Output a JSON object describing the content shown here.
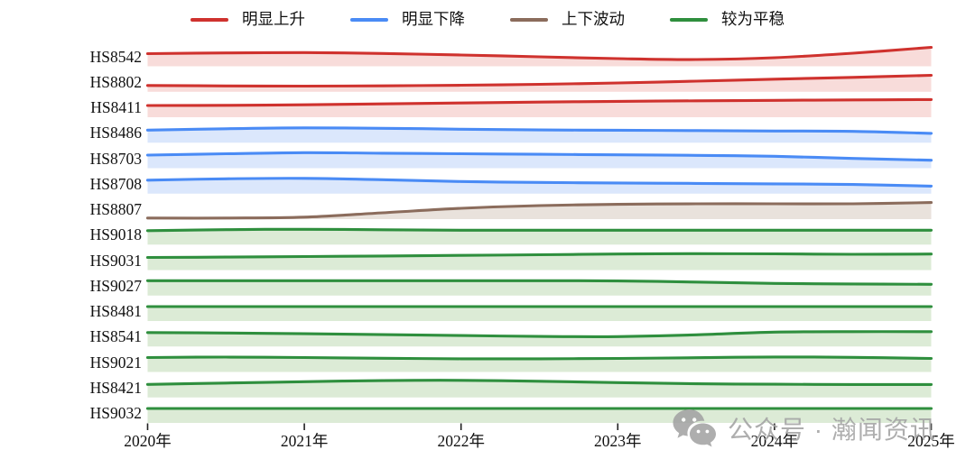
{
  "legend": {
    "items": [
      {
        "label": "明显上升",
        "color": "#cf322e"
      },
      {
        "label": "明显下降",
        "color": "#4a8bf5"
      },
      {
        "label": "上下波动",
        "color": "#8b6c5c"
      },
      {
        "label": "较为平稳",
        "color": "#2f8f3e"
      }
    ]
  },
  "watermark": {
    "icon": "wechat-icon",
    "text": "公众号 · 瀚闻资讯",
    "color": "#a3a3a3"
  },
  "chart_data": {
    "type": "area",
    "title": "",
    "xlabel": "",
    "ylabel": "",
    "x": [
      2020,
      2020.5,
      2021,
      2021.5,
      2022,
      2022.5,
      2023,
      2023.5,
      2024,
      2024.5,
      2025
    ],
    "x_ticks": [
      "2020年",
      "2021年",
      "2022年",
      "2023年",
      "2024年",
      "2025年"
    ],
    "xlim": [
      2020,
      2025
    ],
    "band_value_range": [
      0,
      22
    ],
    "grid": false,
    "legend_position": "top-center",
    "value_note": "relative level per HS-code band (ridgeline area chart), arbitrary units",
    "groups": [
      {
        "label": "明显上升",
        "line": "#cf322e",
        "fill": "#f8dcda"
      },
      {
        "label": "明显下降",
        "line": "#4a8bf5",
        "fill": "#dbe7fc"
      },
      {
        "label": "上下波动",
        "line": "#8b6c5c",
        "fill": "#e9e2dc"
      },
      {
        "label": "较为平稳",
        "line": "#2f8f3e",
        "fill": "#dcebd6"
      }
    ],
    "series": [
      {
        "name": "HS8542",
        "group": "明显上升",
        "values": [
          14,
          14.8,
          15.2,
          14.2,
          12.5,
          10.5,
          8.5,
          7.5,
          9.5,
          14.5,
          21
        ]
      },
      {
        "name": "HS8802",
        "group": "明显上升",
        "values": [
          7,
          6.5,
          6.2,
          6.6,
          7.2,
          8.2,
          9.8,
          11.8,
          14,
          16,
          18.2
        ]
      },
      {
        "name": "HS8411",
        "group": "明显上升",
        "values": [
          13,
          13.2,
          13.8,
          14.8,
          15.8,
          16.8,
          17.6,
          18.2,
          18.7,
          19.2,
          19.6
        ]
      },
      {
        "name": "HS8486",
        "group": "明显下降",
        "values": [
          14,
          15.5,
          16.5,
          16,
          15,
          14.2,
          13.8,
          13.4,
          13,
          12.6,
          10.3
        ]
      },
      {
        "name": "HS8703",
        "group": "明显下降",
        "values": [
          14.5,
          16,
          17.2,
          16.6,
          16,
          15.4,
          14.8,
          14.2,
          13.2,
          10.8,
          8.8
        ]
      },
      {
        "name": "HS8708",
        "group": "明显下降",
        "values": [
          15,
          16.5,
          17,
          15.4,
          13.4,
          12.4,
          11.8,
          11.3,
          10.8,
          10.2,
          8.3
        ]
      },
      {
        "name": "HS8807",
        "group": "上下波动",
        "values": [
          1.2,
          1.2,
          2.2,
          7,
          12,
          15,
          16.4,
          17,
          17,
          17,
          18.4
        ]
      },
      {
        "name": "HS9018",
        "group": "较为平稳",
        "values": [
          15.5,
          16.6,
          17,
          16.5,
          16,
          16,
          16,
          16,
          16,
          16,
          16
        ]
      },
      {
        "name": "HS9031",
        "group": "较为平稳",
        "values": [
          14,
          14.4,
          15,
          15.6,
          16.3,
          17,
          17.8,
          18.2,
          18,
          17.5,
          17.8
        ]
      },
      {
        "name": "HS9027",
        "group": "较为平稳",
        "values": [
          16.5,
          16.5,
          16.5,
          16.5,
          16.5,
          16.5,
          16.2,
          15,
          13.5,
          12.8,
          12.5
        ]
      },
      {
        "name": "HS8481",
        "group": "较为平稳",
        "values": [
          16,
          16,
          16,
          16,
          16,
          16,
          16,
          16,
          16,
          16,
          16
        ]
      },
      {
        "name": "HS8541",
        "group": "较为平稳",
        "values": [
          15.5,
          15,
          14.2,
          13.2,
          12.2,
          11.2,
          11,
          13,
          16,
          16.5,
          16.5
        ]
      },
      {
        "name": "HS9021",
        "group": "较为平稳",
        "values": [
          16,
          16.5,
          16,
          15.2,
          14.6,
          14.6,
          15,
          15.8,
          16.6,
          16.2,
          15
        ]
      },
      {
        "name": "HS8421",
        "group": "较为平稳",
        "values": [
          14.5,
          16,
          17.5,
          18.7,
          19,
          18,
          16.5,
          15.2,
          14.6,
          14.4,
          14.4
        ]
      },
      {
        "name": "HS9032",
        "group": "较为平稳",
        "values": [
          16,
          16,
          16,
          16,
          16,
          16,
          16,
          16,
          16,
          16,
          16
        ]
      }
    ]
  }
}
